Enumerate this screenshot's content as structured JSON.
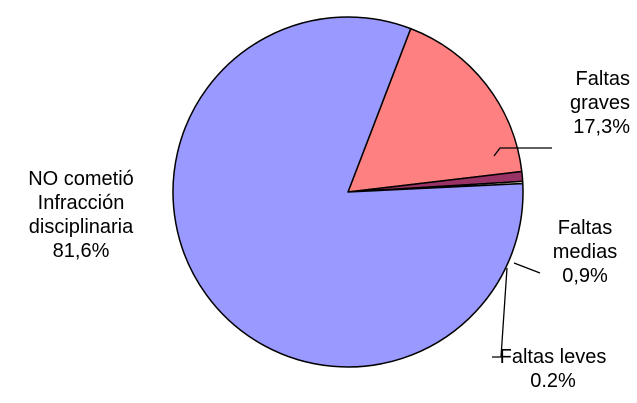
{
  "chart_data": {
    "type": "pie",
    "slices": [
      {
        "label_lines": [
          "NO cometió",
          "Infracción",
          "disciplinaria"
        ],
        "value_text": "81,6%",
        "value": 81.6,
        "color": "#9999ff"
      },
      {
        "label_lines": [
          "Faltas",
          "graves"
        ],
        "value_text": "17,3%",
        "value": 17.3,
        "color": "#ff8080"
      },
      {
        "label_lines": [
          "Faltas",
          "medias"
        ],
        "value_text": "0,9%",
        "value": 0.9,
        "color": "#993366"
      },
      {
        "label_lines": [
          "Faltas leves"
        ],
        "value_text": "0.2%",
        "value": 0.2,
        "color": "#ffffcc"
      }
    ]
  }
}
